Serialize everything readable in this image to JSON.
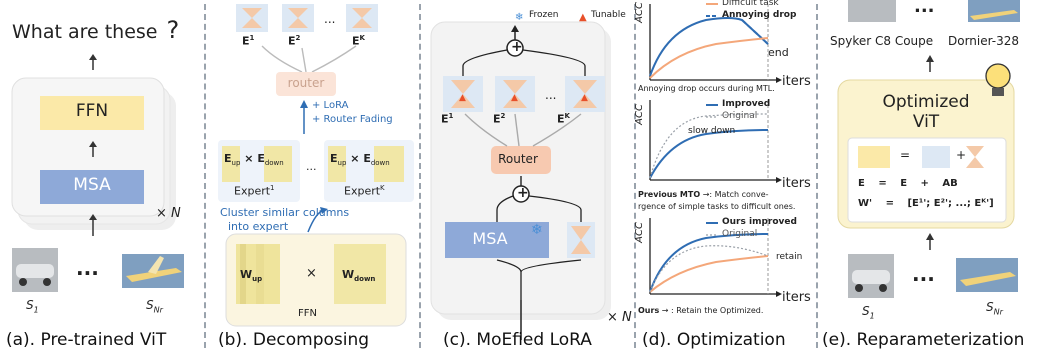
{
  "panel_a": {
    "question": "What are these",
    "ffn": "FFN",
    "msa": "MSA",
    "times_n": "× N",
    "dots": "...",
    "s1": "S",
    "s1_sub": "1",
    "snr": "S",
    "snr_sub": "Nr",
    "caption": "(a). Pre-trained ViT"
  },
  "panel_b": {
    "e1": "E",
    "e1_sup": "1",
    "e2": "E",
    "e2_sup": "2",
    "ek": "E",
    "ek_sup": "K",
    "dots": "...",
    "router": "router",
    "lora": "+ LoRA",
    "router_fading": "+ Router Fading",
    "times": "×",
    "e_up": "E",
    "e_up_sub": "up",
    "e_down": "E",
    "e_down_sub": "down",
    "expert1": "Expert",
    "expert1_sup": "1",
    "expertk": "Expert",
    "expertk_sup": "K",
    "cluster_line1": "Cluster similar columns",
    "cluster_line2": "into expert",
    "w_up": "W",
    "w_up_sub": "up",
    "w_down": "W",
    "w_down_sub": "down",
    "ffn": "FFN",
    "caption": "(b). Decomposing"
  },
  "panel_c": {
    "frozen": "Frozen",
    "tunable": "Tunable",
    "router": "Router",
    "msa": "MSA",
    "e1": "E",
    "e1_sup": "1",
    "e2": "E",
    "e2_sup": "2",
    "ek": "E",
    "ek_sup": "K",
    "dots": "...",
    "plus": "+",
    "times_n": "× N",
    "caption": "(c). MoEfied LoRA"
  },
  "panel_d": {
    "acc": "ACC",
    "iters": "iters",
    "plot1": {
      "legend": [
        "Difficult task",
        "Annoying drop"
      ],
      "end_label": "end",
      "note": "Annoying drop occurs during MTL."
    },
    "plot2": {
      "legend": [
        "Improved",
        "Original"
      ],
      "slow_down": "slow down",
      "note_bold": "Previous MTO",
      "note_rest": "→: Match conve-",
      "note_line2": "rgence of simple tasks to difficult ones."
    },
    "plot3": {
      "legend": [
        "Ours improved",
        "Original"
      ],
      "retain": "retain",
      "note_bold": "Ours",
      "note_rest": "→ : Retain the Optimized."
    },
    "caption": "(d). Optimization"
  },
  "panel_e": {
    "car_label": "Spyker C8 Coupe",
    "plane_label": "Dornier-328",
    "dots": "...",
    "title_line1": "Optimized",
    "title_line2": "ViT",
    "eq": "=",
    "plus": "+",
    "row1": [
      "E",
      "=",
      "E",
      "+",
      "A",
      "B"
    ],
    "row2_w": "W'",
    "row2_eq": "=",
    "row2_rhs": "[E¹'; E²'; ...; Eᴷ']",
    "s1": "S",
    "s1_sub": "1",
    "snr": "S",
    "snr_sub": "Nr",
    "caption": "(e). Reparameterization"
  },
  "colors": {
    "ffn_fill": "#fbe9a8",
    "msa_fill": "#8ea9d8",
    "router_fill": "#f7c9b0",
    "expert_fill": "#f1e7a6",
    "improved": "#2f6db3",
    "original": "#f4a77a",
    "panel_e_bg": "#fbf3cf"
  }
}
